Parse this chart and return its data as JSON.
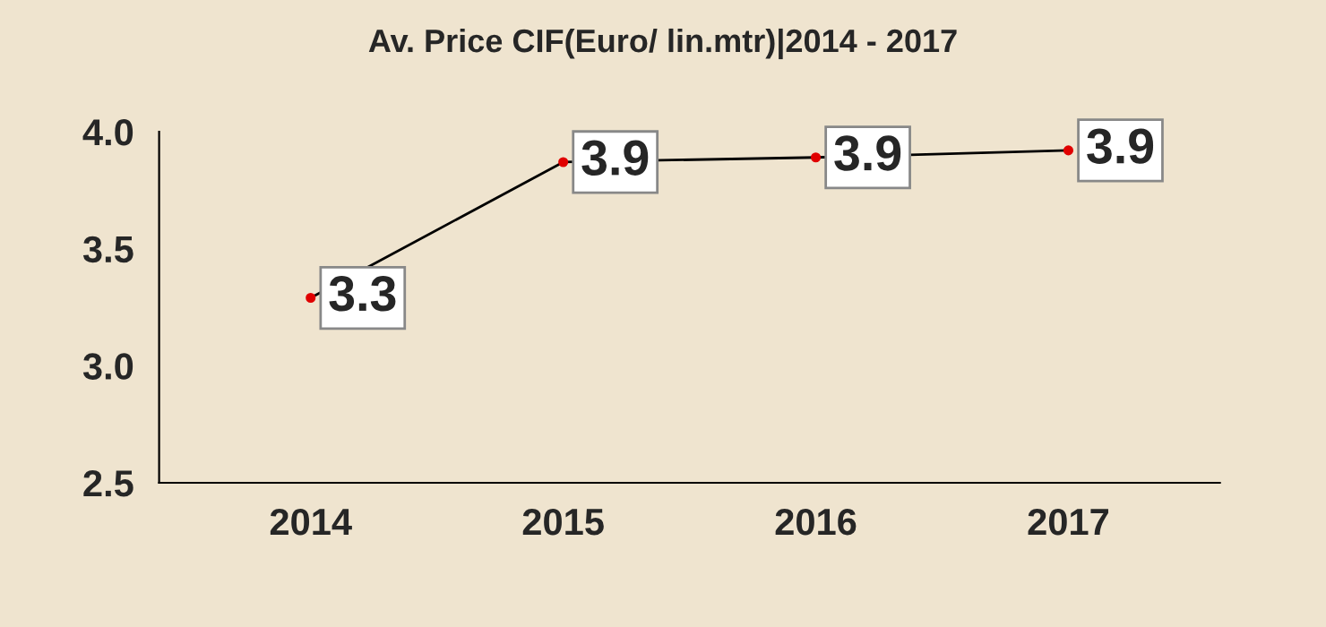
{
  "chart_data": {
    "type": "line",
    "title": "Av. Price CIF(Euro/ lin.mtr)|2014 - 2017",
    "categories": [
      "2014",
      "2015",
      "2016",
      "2017"
    ],
    "series": [
      {
        "color": "#000000",
        "values": [
          3.29,
          3.87,
          3.89,
          3.92
        ],
        "value_labels": [
          "3.3",
          "3.9",
          "3.9",
          "3.9"
        ]
      }
    ],
    "ylim": [
      2.5,
      4.0
    ],
    "yticks": [
      {
        "value": 2.5,
        "label": "2.5"
      },
      {
        "value": 3.0,
        "label": "3.0"
      },
      {
        "value": 3.5,
        "label": "3.5"
      },
      {
        "value": 4.0,
        "label": "4.0"
      }
    ],
    "grid": false,
    "legend": false,
    "marker": "circle",
    "line_style": "solid"
  }
}
